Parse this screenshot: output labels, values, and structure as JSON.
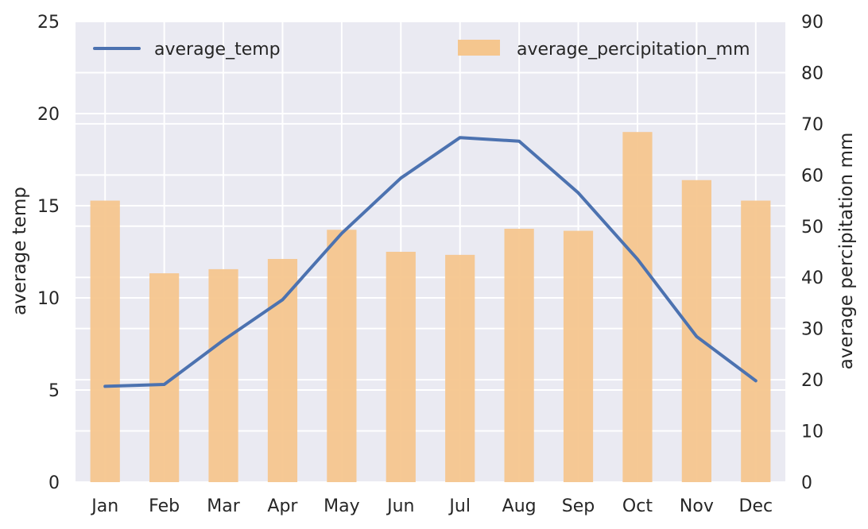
{
  "chart_data": {
    "type": "bar+line",
    "categories": [
      "Jan",
      "Feb",
      "Mar",
      "Apr",
      "May",
      "Jun",
      "Jul",
      "Aug",
      "Sep",
      "Oct",
      "Nov",
      "Dec"
    ],
    "bar_series": {
      "name": "average_percipitation_mm",
      "axis": "right",
      "color": "#f5c68e",
      "values": [
        55,
        40.8,
        41.6,
        43.6,
        49.3,
        45,
        44.4,
        49.5,
        49.1,
        68.4,
        59,
        55
      ]
    },
    "line_series": {
      "name": "average_temp",
      "axis": "left",
      "color": "#4c72b0",
      "values": [
        5.2,
        5.3,
        7.7,
        9.9,
        13.5,
        16.5,
        18.7,
        18.5,
        15.7,
        12.1,
        7.9,
        5.5
      ]
    },
    "left_axis": {
      "label": "average temp",
      "ylim": [
        0,
        25
      ],
      "ticks": [
        "0",
        "5",
        "10",
        "15",
        "20",
        "25"
      ]
    },
    "right_axis": {
      "label": "average percipitation mm",
      "ylim": [
        0,
        90
      ],
      "ticks": [
        "0",
        "10",
        "20",
        "30",
        "40",
        "50",
        "60",
        "70",
        "80",
        "90"
      ]
    },
    "grid": true,
    "background": "#eaeaf2",
    "legends": [
      {
        "placement": "top-left",
        "label": "average_temp"
      },
      {
        "placement": "top-right",
        "label": "average_percipitation_mm"
      }
    ]
  }
}
